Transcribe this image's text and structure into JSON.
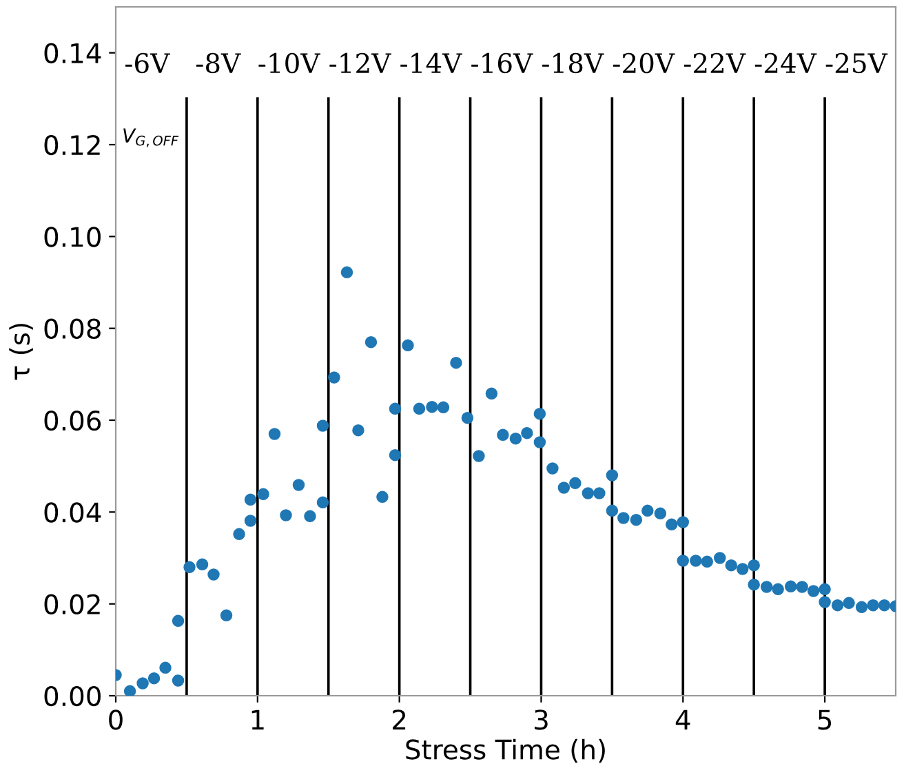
{
  "chart_data": {
    "type": "scatter",
    "xlabel": "Stress Time (h)",
    "ylabel": "τ (s)",
    "xlim": [
      0,
      5.5
    ],
    "ylim": [
      0,
      0.15
    ],
    "xticks": [
      0,
      1,
      2,
      3,
      4,
      5
    ],
    "yticks": [
      {
        "value": 0,
        "label": "0.00"
      },
      {
        "value": 0.02,
        "label": "0.02"
      },
      {
        "value": 0.04,
        "label": "0.04"
      },
      {
        "value": 0.06,
        "label": "0.06"
      },
      {
        "value": 0.08,
        "label": "0.08"
      },
      {
        "value": 0.1,
        "label": "0.10"
      },
      {
        "value": 0.12,
        "label": "0.12"
      },
      {
        "value": 0.14,
        "label": "0.14"
      }
    ],
    "grid": false,
    "legend": false,
    "marker": "circle",
    "series": [
      {
        "color": "#1f77b4",
        "x": [
          0.0,
          0.1,
          0.19,
          0.27,
          0.35,
          0.44,
          0.44,
          0.52,
          0.61,
          0.69,
          0.78,
          0.87,
          0.95,
          0.95,
          1.04,
          1.12,
          1.2,
          1.29,
          1.37,
          1.46,
          1.46,
          1.54,
          1.63,
          1.71,
          1.8,
          1.88,
          1.97,
          1.97,
          2.06,
          2.14,
          2.23,
          2.31,
          2.4,
          2.48,
          2.56,
          2.65,
          2.73,
          2.82,
          2.9,
          2.99,
          2.99,
          3.08,
          3.16,
          3.24,
          3.33,
          3.41,
          3.5,
          3.5,
          3.58,
          3.67,
          3.75,
          3.84,
          3.92,
          4.0,
          4.0,
          4.09,
          4.17,
          4.26,
          4.34,
          4.42,
          4.5,
          4.5,
          4.59,
          4.67,
          4.76,
          4.84,
          4.92,
          5.0,
          5.0,
          5.09,
          5.17,
          5.26,
          5.34,
          5.42,
          5.5
        ],
        "values": [
          0.0045,
          0.001,
          0.0027,
          0.0038,
          0.0061,
          0.0163,
          0.0033,
          0.028,
          0.0286,
          0.0264,
          0.0175,
          0.0352,
          0.0381,
          0.0427,
          0.0439,
          0.057,
          0.0393,
          0.0459,
          0.0391,
          0.0421,
          0.0588,
          0.0693,
          0.0922,
          0.0578,
          0.077,
          0.0433,
          0.0625,
          0.0524,
          0.0763,
          0.0625,
          0.0629,
          0.0628,
          0.0725,
          0.0605,
          0.0522,
          0.0658,
          0.0568,
          0.056,
          0.0572,
          0.0614,
          0.0552,
          0.0495,
          0.0453,
          0.0463,
          0.0441,
          0.0441,
          0.048,
          0.0403,
          0.0387,
          0.0383,
          0.0403,
          0.0397,
          0.0373,
          0.0378,
          0.0294,
          0.0294,
          0.0292,
          0.03,
          0.0284,
          0.0276,
          0.0284,
          0.0242,
          0.0237,
          0.0232,
          0.0238,
          0.0237,
          0.0228,
          0.0232,
          0.0204,
          0.0197,
          0.0202,
          0.0193,
          0.0197,
          0.0197,
          0.0195
        ]
      }
    ],
    "ref_lines": [
      {
        "axis": "x",
        "value": 0.5,
        "color": "#000000"
      },
      {
        "axis": "x",
        "value": 1,
        "color": "#000000"
      },
      {
        "axis": "x",
        "value": 1.5,
        "color": "#000000"
      },
      {
        "axis": "x",
        "value": 2,
        "color": "#000000"
      },
      {
        "axis": "x",
        "value": 2.5,
        "color": "#000000"
      },
      {
        "axis": "x",
        "value": 3,
        "color": "#000000"
      },
      {
        "axis": "x",
        "value": 3.5,
        "color": "#000000"
      },
      {
        "axis": "x",
        "value": 4,
        "color": "#000000"
      },
      {
        "axis": "x",
        "value": 4.5,
        "color": "#000000"
      },
      {
        "axis": "x",
        "value": 5,
        "color": "#000000"
      }
    ],
    "annotations": [
      "-6V",
      "-8V",
      "-10V",
      "-12V",
      "-14V",
      "-16V",
      "-18V",
      "-20V",
      "-22V",
      "-24V",
      "-25V",
      "V$_{G,OFF}$"
    ]
  }
}
